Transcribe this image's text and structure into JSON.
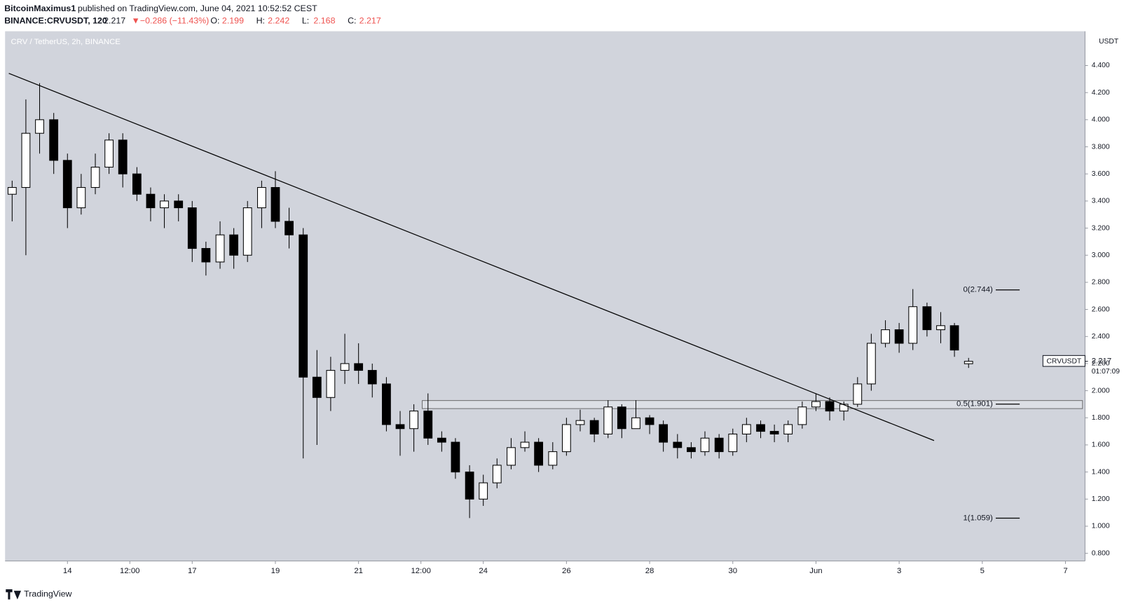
{
  "header": {
    "publisher": "BitcoinMaximus1",
    "published": "published on TradingView.com, June 04, 2021 10:52:52 CEST",
    "symbol": "BINANCE:CRVUSDT, 120",
    "last": 2.217,
    "arrow": "▼",
    "change": "−0.286 (−11.43%)",
    "ohlc": [
      {
        "key": "O:",
        "value": 2.199
      },
      {
        "key": "H:",
        "value": 2.242
      },
      {
        "key": "L:",
        "value": 2.168
      },
      {
        "key": "C:",
        "value": 2.217
      }
    ]
  },
  "chart_data": {
    "type": "candlestick",
    "title": "CRV / TetherUS, 2h, BINANCE",
    "y_axis_label": "USDT",
    "x": [
      12.67,
      13.0,
      13.33,
      13.67,
      14.0,
      14.33,
      14.67,
      15.0,
      15.33,
      15.67,
      16.0,
      16.33,
      16.67,
      17.0,
      17.33,
      17.67,
      18.0,
      18.33,
      18.67,
      19.0,
      19.33,
      19.67,
      20.0,
      20.33,
      20.67,
      21.0,
      21.33,
      21.67,
      22.0,
      22.33,
      22.67,
      23.0,
      23.33,
      23.67,
      24.0,
      24.33,
      24.67,
      25.0,
      25.33,
      25.67,
      26.0,
      26.33,
      26.67,
      27.0,
      27.33,
      27.67,
      28.0,
      28.33,
      28.67,
      29.0,
      29.33,
      29.67,
      30.0,
      30.33,
      30.67,
      31.0,
      31.33,
      31.67,
      32.0,
      32.33,
      32.67,
      33.0,
      33.33,
      33.67,
      34.0,
      34.33,
      34.67,
      35.0,
      35.33,
      35.67
    ],
    "open": [
      3.45,
      3.5,
      3.9,
      4.0,
      3.7,
      3.35,
      3.5,
      3.65,
      3.85,
      3.6,
      3.45,
      3.35,
      3.4,
      3.35,
      3.05,
      2.95,
      3.15,
      3.0,
      3.35,
      3.5,
      3.25,
      3.15,
      2.1,
      1.95,
      2.15,
      2.2,
      2.15,
      2.05,
      1.75,
      1.72,
      1.85,
      1.65,
      1.62,
      1.4,
      1.2,
      1.32,
      1.45,
      1.58,
      1.62,
      1.45,
      1.55,
      1.75,
      1.78,
      1.68,
      1.88,
      1.72,
      1.8,
      1.75,
      1.62,
      1.58,
      1.55,
      1.65,
      1.55,
      1.68,
      1.75,
      1.7,
      1.68,
      1.75,
      1.88,
      1.92,
      1.85,
      1.9,
      2.05,
      2.35,
      2.45,
      2.35,
      2.62,
      2.45,
      2.48,
      2.199
    ],
    "high": [
      3.55,
      4.15,
      4.27,
      4.05,
      3.75,
      3.6,
      3.75,
      3.9,
      3.9,
      3.65,
      3.5,
      3.45,
      3.45,
      3.4,
      3.1,
      3.25,
      3.2,
      3.4,
      3.55,
      3.62,
      3.35,
      3.2,
      2.3,
      2.25,
      2.42,
      2.35,
      2.2,
      2.1,
      1.85,
      1.9,
      1.98,
      1.7,
      1.65,
      1.45,
      1.38,
      1.5,
      1.65,
      1.7,
      1.65,
      1.62,
      1.8,
      1.86,
      1.8,
      1.93,
      1.9,
      1.93,
      1.82,
      1.78,
      1.68,
      1.62,
      1.7,
      1.68,
      1.72,
      1.8,
      1.78,
      1.75,
      1.78,
      1.92,
      1.98,
      1.95,
      1.92,
      2.1,
      2.42,
      2.52,
      2.5,
      2.75,
      2.65,
      2.58,
      2.5,
      2.242
    ],
    "low": [
      3.25,
      3.0,
      3.75,
      3.6,
      3.2,
      3.3,
      3.45,
      3.6,
      3.5,
      3.4,
      3.25,
      3.2,
      3.25,
      2.95,
      2.85,
      2.9,
      2.9,
      2.95,
      3.2,
      3.2,
      3.05,
      1.5,
      1.6,
      1.85,
      2.05,
      2.05,
      1.95,
      1.7,
      1.52,
      1.55,
      1.6,
      1.55,
      1.35,
      1.06,
      1.15,
      1.28,
      1.42,
      1.55,
      1.4,
      1.42,
      1.52,
      1.7,
      1.62,
      1.65,
      1.65,
      1.72,
      1.68,
      1.55,
      1.5,
      1.5,
      1.52,
      1.5,
      1.52,
      1.62,
      1.65,
      1.62,
      1.62,
      1.72,
      1.85,
      1.78,
      1.78,
      1.88,
      2.0,
      2.32,
      2.28,
      2.3,
      2.4,
      2.35,
      2.25,
      2.168
    ],
    "close": [
      3.5,
      3.9,
      4.0,
      3.7,
      3.35,
      3.5,
      3.65,
      3.85,
      3.6,
      3.45,
      3.35,
      3.4,
      3.35,
      3.05,
      2.95,
      3.15,
      3.0,
      3.35,
      3.5,
      3.25,
      3.15,
      2.1,
      1.95,
      2.15,
      2.2,
      2.15,
      2.05,
      1.75,
      1.72,
      1.85,
      1.65,
      1.62,
      1.4,
      1.2,
      1.32,
      1.45,
      1.58,
      1.62,
      1.45,
      1.55,
      1.75,
      1.78,
      1.68,
      1.88,
      1.72,
      1.8,
      1.75,
      1.62,
      1.58,
      1.55,
      1.65,
      1.55,
      1.68,
      1.75,
      1.7,
      1.68,
      1.75,
      1.88,
      1.92,
      1.85,
      1.9,
      2.05,
      2.35,
      2.45,
      2.35,
      2.62,
      2.45,
      2.48,
      2.3,
      2.217
    ],
    "xlim": [
      12.5,
      38.47
    ],
    "ylim": [
      0.743,
      4.653
    ],
    "xticks": [
      14,
      {
        "value": 15.5,
        "label": "12:00"
      },
      17,
      19,
      21,
      {
        "value": 22.5,
        "label": "12:00"
      },
      24,
      26,
      28,
      30,
      {
        "value": 32,
        "label": "Jun"
      },
      {
        "value": 34,
        "label": "3"
      },
      {
        "value": 36,
        "label": "5"
      },
      {
        "value": 38,
        "label": "7"
      }
    ],
    "yticks": [
      {
        "value": 0.8,
        "label": "0.800"
      },
      {
        "value": 1.0,
        "label": "1.000"
      },
      {
        "value": 1.2,
        "label": "1.200"
      },
      {
        "value": 1.4,
        "label": "1.400"
      },
      {
        "value": 1.6,
        "label": "1.600"
      },
      {
        "value": 1.8,
        "label": "1.800"
      },
      {
        "value": 2.0,
        "label": "2.000"
      },
      {
        "value": 2.2,
        "label": "2.200"
      },
      {
        "value": 2.4,
        "label": "2.400"
      },
      {
        "value": 2.6,
        "label": "2.600"
      },
      {
        "value": 2.8,
        "label": "2.800"
      },
      {
        "value": 3.0,
        "label": "3.000"
      },
      {
        "value": 3.2,
        "label": "3.200"
      },
      {
        "value": 3.4,
        "label": "3.400"
      },
      {
        "value": 3.6,
        "label": "3.600"
      },
      {
        "value": 3.8,
        "label": "3.800"
      },
      {
        "value": 4.0,
        "label": "4.000"
      },
      {
        "value": 4.2,
        "label": "4.200"
      },
      {
        "value": 4.4,
        "label": "4.400"
      }
    ],
    "trendline": {
      "x": [
        12.59,
        34.84
      ],
      "y": [
        4.342,
        1.632
      ]
    },
    "zone": {
      "x": [
        22.53,
        38.41
      ],
      "y": [
        1.868,
        1.927
      ]
    },
    "fib_levels": [
      {
        "value": 2.744,
        "label": "0(2.744)"
      },
      {
        "value": 1.901,
        "label": "0.5(1.901)"
      },
      {
        "value": 1.059,
        "label": "1(1.059)"
      }
    ],
    "price_tag": {
      "name": "CRVUSDT",
      "price": 2.217,
      "countdown": "01:07:09"
    }
  },
  "footer": {
    "brand": "TradingView"
  }
}
